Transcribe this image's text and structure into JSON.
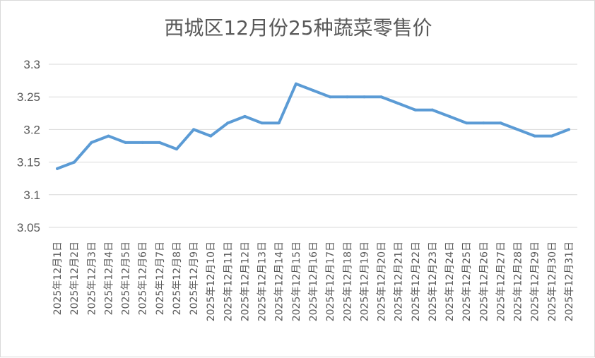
{
  "colors": {
    "series": "#5b9bd5",
    "grid": "#d9d9d9",
    "text": "#595959"
  },
  "chart_data": {
    "type": "line",
    "title": "西城区12月份25种蔬菜零售价",
    "xlabel": "",
    "ylabel": "",
    "ylim": [
      3.05,
      3.3
    ],
    "yticks": [
      "3.05",
      "3.1",
      "3.15",
      "3.2",
      "3.25",
      "3.3"
    ],
    "grid": true,
    "legend": "none",
    "categories": [
      "2025年12月1日",
      "2025年12月2日",
      "2025年12月3日",
      "2025年12月4日",
      "2025年12月5日",
      "2025年12月6日",
      "2025年12月7日",
      "2025年12月8日",
      "2025年12月9日",
      "2025年12月10日",
      "2025年12月11日",
      "2025年12月12日",
      "2025年12月13日",
      "2025年12月14日",
      "2025年12月15日",
      "2025年12月16日",
      "2025年12月17日",
      "2025年12月18日",
      "2025年12月19日",
      "2025年12月20日",
      "2025年12月21日",
      "2025年12月22日",
      "2025年12月23日",
      "2025年12月24日",
      "2025年12月25日",
      "2025年12月26日",
      "2025年12月27日",
      "2025年12月28日",
      "2025年12月29日",
      "2025年12月30日",
      "2025年12月31日"
    ],
    "series": [
      {
        "values": [
          3.14,
          3.15,
          3.18,
          3.19,
          3.18,
          3.18,
          3.18,
          3.17,
          3.2,
          3.19,
          3.21,
          3.22,
          3.21,
          3.21,
          3.27,
          3.26,
          3.25,
          3.25,
          3.25,
          3.25,
          3.24,
          3.23,
          3.23,
          3.22,
          3.21,
          3.21,
          3.21,
          3.2,
          3.19,
          3.19,
          3.2
        ]
      }
    ]
  }
}
